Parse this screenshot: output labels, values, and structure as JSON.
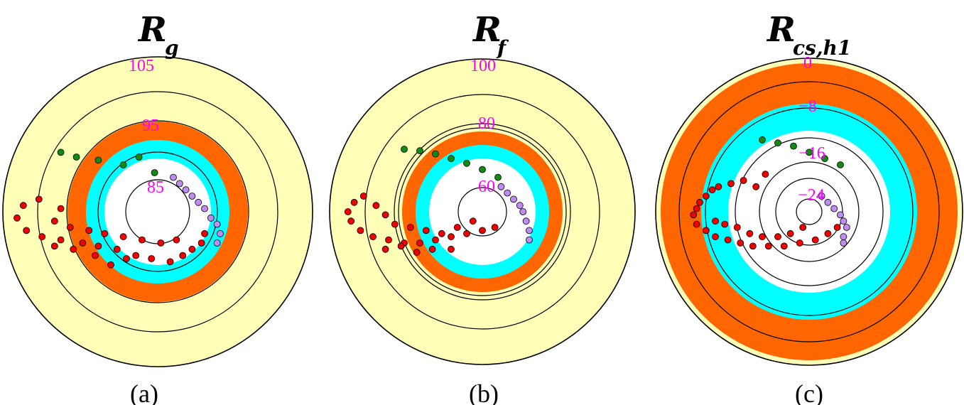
{
  "colors": {
    "outer_band": "#ffffb8",
    "orange_band": "#ff6600",
    "cyan_band": "#00ffff",
    "inner": "#ffffff",
    "ring_line": "#000000",
    "label": "#ff00ff",
    "green_points": "#138a13",
    "purple_points": "#c08cf0",
    "red_points": "#ee0000"
  },
  "chart_data": [
    {
      "type": "scatter",
      "title": "R",
      "title_subscript": "g",
      "caption": "(a)",
      "rings": [
        "105",
        "95",
        "85"
      ],
      "series": [
        {
          "color": "green",
          "points": [
            [
              -62,
              -38
            ],
            [
              -52,
              -35
            ],
            [
              -38,
              -33
            ],
            [
              -22,
              -30
            ],
            [
              -12,
              -35
            ],
            [
              -2,
              -25
            ]
          ]
        },
        {
          "color": "purple",
          "points": [
            [
              10,
              -22
            ],
            [
              14,
              -18
            ],
            [
              18,
              -14
            ],
            [
              22,
              -10
            ],
            [
              26,
              -6
            ],
            [
              30,
              -2
            ],
            [
              34,
              4
            ],
            [
              38,
              8
            ],
            [
              40,
              14
            ],
            [
              38,
              20
            ]
          ]
        },
        {
          "color": "red",
          "points": [
            [
              -76,
              -8
            ],
            [
              -86,
              -4
            ],
            [
              -90,
              4
            ],
            [
              -84,
              12
            ],
            [
              -74,
              16
            ],
            [
              -62,
              18
            ],
            [
              -48,
              20
            ],
            [
              -38,
              22
            ],
            [
              -26,
              24
            ],
            [
              -14,
              28
            ],
            [
              -4,
              30
            ],
            [
              8,
              32
            ],
            [
              16,
              28
            ],
            [
              22,
              24
            ],
            [
              28,
              20
            ],
            [
              30,
              14
            ],
            [
              -62,
              -2
            ],
            [
              -66,
              6
            ],
            [
              -56,
              10
            ],
            [
              -44,
              12
            ],
            [
              -34,
              14
            ],
            [
              -22,
              16
            ],
            [
              -10,
              18
            ],
            [
              2,
              20
            ],
            [
              12,
              18
            ],
            [
              -66,
              22
            ],
            [
              -54,
              24
            ],
            [
              -40,
              28
            ],
            [
              -30,
              34
            ],
            [
              -20,
              30
            ]
          ]
        }
      ]
    },
    {
      "type": "scatter",
      "title": "R",
      "title_subscript": "f",
      "caption": "(b)",
      "rings": [
        "100",
        "80",
        "60"
      ],
      "series": [
        {
          "color": "green",
          "points": [
            [
              -50,
              -40
            ],
            [
              -40,
              -39
            ],
            [
              -30,
              -37
            ],
            [
              -20,
              -34
            ],
            [
              -10,
              -31
            ],
            [
              0,
              -27
            ],
            [
              10,
              -22
            ]
          ]
        },
        {
          "color": "purple",
          "points": [
            [
              12,
              -16
            ],
            [
              16,
              -12
            ],
            [
              20,
              -8
            ],
            [
              24,
              -4
            ],
            [
              26,
              0
            ],
            [
              28,
              6
            ],
            [
              30,
              12
            ],
            [
              30,
              18
            ]
          ]
        },
        {
          "color": "red",
          "points": [
            [
              -76,
              -10
            ],
            [
              -82,
              -6
            ],
            [
              -86,
              0
            ],
            [
              -84,
              6
            ],
            [
              -78,
              12
            ],
            [
              -70,
              16
            ],
            [
              -60,
              18
            ],
            [
              -50,
              20
            ],
            [
              -40,
              20
            ],
            [
              -30,
              18
            ],
            [
              -20,
              16
            ],
            [
              -10,
              14
            ],
            [
              0,
              12
            ],
            [
              8,
              10
            ],
            [
              -68,
              -4
            ],
            [
              -62,
              2
            ],
            [
              -56,
              8
            ],
            [
              -46,
              10
            ],
            [
              -36,
              12
            ],
            [
              -26,
              14
            ],
            [
              -16,
              10
            ],
            [
              -6,
              6
            ],
            [
              -62,
              24
            ],
            [
              -52,
              22
            ],
            [
              -42,
              26
            ],
            [
              -32,
              24
            ],
            [
              -20,
              24
            ]
          ]
        }
      ]
    },
    {
      "type": "scatter",
      "title": "R",
      "title_subscript": "cs,h1",
      "caption": "(c)",
      "rings": [
        "0",
        "−8",
        "−16",
        "−24"
      ],
      "series": [
        {
          "color": "green",
          "points": [
            [
              -30,
              -46
            ],
            [
              -20,
              -44
            ],
            [
              -10,
              -42
            ],
            [
              0,
              -38
            ],
            [
              10,
              -34
            ],
            [
              20,
              -30
            ]
          ]
        },
        {
          "color": "purple",
          "points": [
            [
              8,
              -10
            ],
            [
              12,
              -6
            ],
            [
              16,
              -2
            ],
            [
              20,
              2
            ],
            [
              22,
              6
            ],
            [
              24,
              10
            ],
            [
              22,
              16
            ],
            [
              22,
              20
            ]
          ]
        },
        {
          "color": "red",
          "points": [
            [
              -62,
              -14
            ],
            [
              -66,
              -10
            ],
            [
              -70,
              -6
            ],
            [
              -72,
              -2
            ],
            [
              -74,
              2
            ],
            [
              -72,
              8
            ],
            [
              -66,
              12
            ],
            [
              -60,
              16
            ],
            [
              -52,
              18
            ],
            [
              -44,
              20
            ],
            [
              -36,
              22
            ],
            [
              -26,
              22
            ],
            [
              -16,
              22
            ],
            [
              -6,
              20
            ],
            [
              4,
              18
            ],
            [
              12,
              14
            ],
            [
              18,
              10
            ],
            [
              -58,
              -16
            ],
            [
              -50,
              -18
            ],
            [
              -42,
              -20
            ],
            [
              -34,
              -16
            ],
            [
              -28,
              -24
            ],
            [
              -60,
              6
            ],
            [
              -54,
              8
            ],
            [
              -46,
              10
            ],
            [
              -38,
              14
            ],
            [
              -30,
              16
            ],
            [
              -20,
              16
            ],
            [
              -12,
              14
            ],
            [
              -4,
              10
            ]
          ]
        }
      ]
    }
  ]
}
